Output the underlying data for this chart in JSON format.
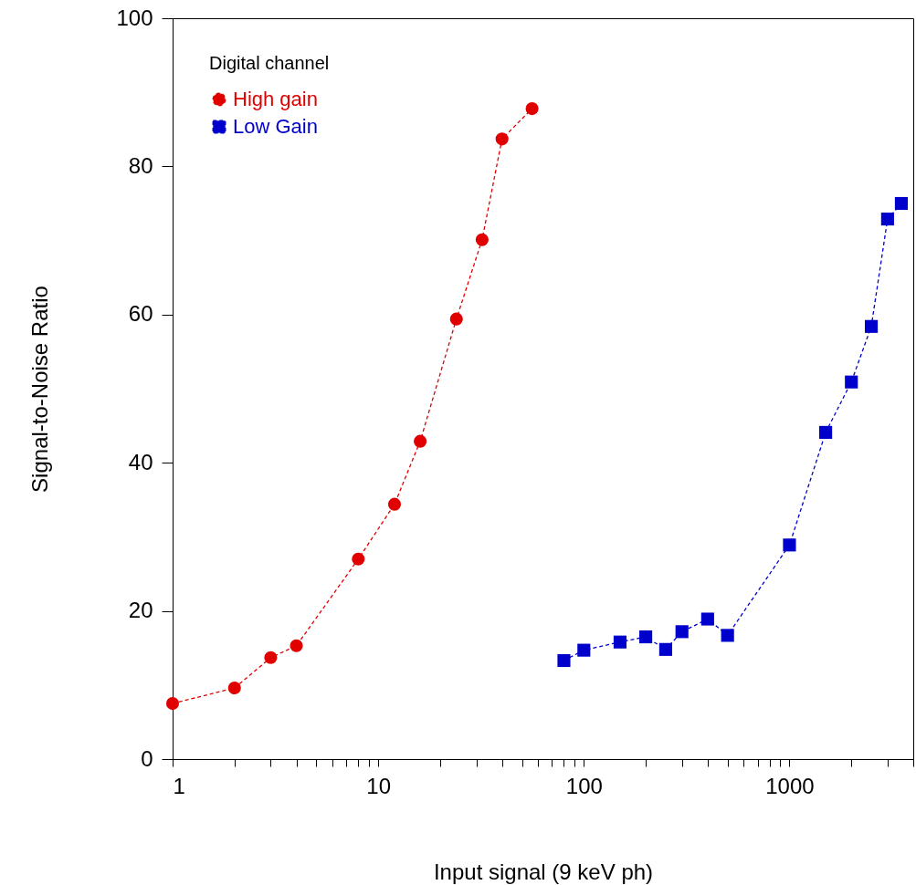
{
  "chart_data": {
    "type": "line",
    "xlabel": "Input signal (9 keV ph)",
    "ylabel": "Signal-to-Noise Ratio",
    "legend_title": "Digital channel",
    "legend": "top left",
    "log": "x",
    "grid": false,
    "line_style": "dashed",
    "xlim": [
      1,
      4000
    ],
    "ylim": [
      0,
      100
    ],
    "xticks": [
      1,
      {
        "value": 2,
        "label": null
      },
      {
        "value": 3,
        "label": null
      },
      {
        "value": 4,
        "label": null
      },
      {
        "value": 5,
        "label": null
      },
      {
        "value": 6,
        "label": null
      },
      {
        "value": 7,
        "label": null
      },
      {
        "value": 8,
        "label": null
      },
      {
        "value": 9,
        "label": null
      },
      10,
      {
        "value": 20,
        "label": null
      },
      {
        "value": 30,
        "label": null
      },
      {
        "value": 40,
        "label": null
      },
      {
        "value": 50,
        "label": null
      },
      {
        "value": 60,
        "label": null
      },
      {
        "value": 70,
        "label": null
      },
      {
        "value": 80,
        "label": null
      },
      {
        "value": 90,
        "label": null
      },
      100,
      {
        "value": 200,
        "label": null
      },
      {
        "value": 300,
        "label": null
      },
      {
        "value": 400,
        "label": null
      },
      {
        "value": 500,
        "label": null
      },
      {
        "value": 600,
        "label": null
      },
      {
        "value": 700,
        "label": null
      },
      {
        "value": 800,
        "label": null
      },
      {
        "value": 900,
        "label": null
      },
      1000,
      {
        "value": 2000,
        "label": null
      },
      {
        "value": 3000,
        "label": null
      },
      {
        "value": 4000,
        "label": null
      }
    ],
    "yticks": [
      0,
      20,
      40,
      60,
      80,
      100
    ],
    "series": [
      {
        "name": "High gain",
        "color": "#e10000",
        "marker": "circle",
        "x": [
          1,
          2,
          3,
          4,
          8,
          12,
          16,
          24,
          32,
          40,
          56
        ],
        "values": [
          7.5,
          9.6,
          13.7,
          15.3,
          27,
          34.4,
          42.9,
          59.4,
          70.1,
          83.7,
          87.8
        ]
      },
      {
        "name": "Low Gain",
        "color": "#0000cc",
        "marker": "square",
        "x": [
          80,
          100,
          150,
          200,
          250,
          300,
          400,
          500,
          1000,
          1500,
          2000,
          2500,
          3000,
          3500
        ],
        "values": [
          13.3,
          14.7,
          15.8,
          16.5,
          14.8,
          17.2,
          18.9,
          16.7,
          28.9,
          44.1,
          50.9,
          58.4,
          72.9,
          75.0
        ]
      }
    ]
  }
}
